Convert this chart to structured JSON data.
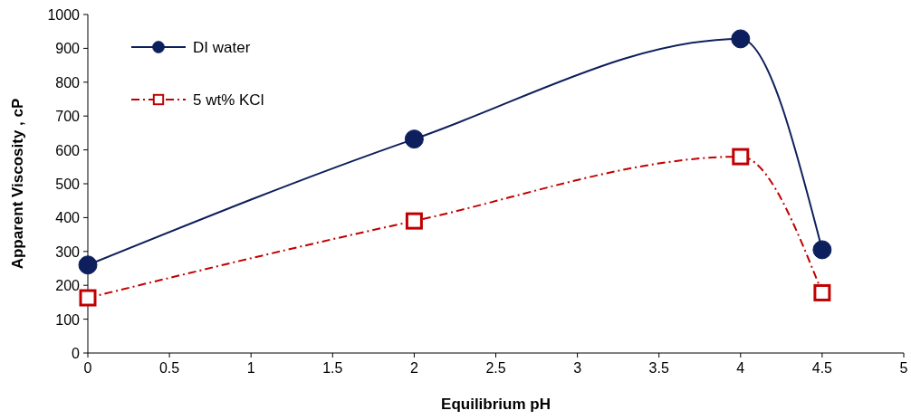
{
  "chart_data": {
    "type": "line",
    "xlabel": "Equilibrium pH",
    "ylabel": "Apparent Viscosity , cP",
    "x": [
      0,
      2,
      4,
      4.5
    ],
    "series": [
      {
        "name": "DI water",
        "color": "#0d1f5c",
        "values": [
          260,
          632,
          928,
          305
        ],
        "marker": "circle",
        "line_style": "solid"
      },
      {
        "name": "5 wt% KCl",
        "color": "#c00000",
        "values": [
          163,
          390,
          580,
          178
        ],
        "marker": "square",
        "line_style": "dashed"
      }
    ],
    "xlim": [
      0,
      5
    ],
    "xticks": [
      0,
      0.5,
      1,
      1.5,
      2,
      2.5,
      3,
      3.5,
      4,
      4.5,
      5
    ],
    "ylim": [
      0,
      1000
    ],
    "yticks": [
      0,
      100,
      200,
      300,
      400,
      500,
      600,
      700,
      800,
      900,
      1000
    ],
    "grid": false,
    "legend": "top left"
  }
}
